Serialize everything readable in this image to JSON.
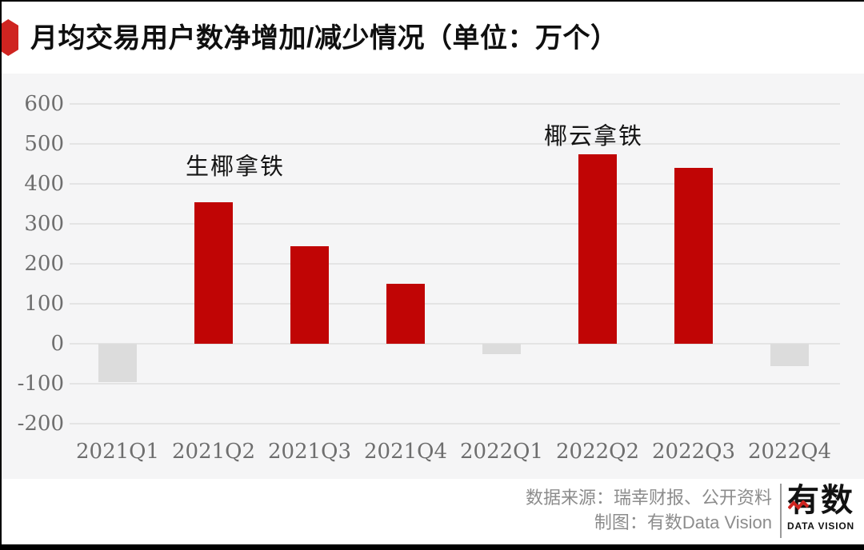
{
  "header": {
    "title": "月均交易用户数净增加/减少情况（单位：万个）"
  },
  "chart_data": {
    "type": "bar",
    "title": "月均交易用户数净增加/减少情况",
    "unit": "万个",
    "categories": [
      "2021Q1",
      "2021Q2",
      "2021Q3",
      "2021Q4",
      "2022Q1",
      "2022Q2",
      "2022Q3",
      "2022Q4"
    ],
    "values": [
      -95,
      355,
      245,
      150,
      -25,
      475,
      440,
      -55
    ],
    "yticks": [
      600,
      500,
      400,
      300,
      200,
      100,
      0,
      -100,
      -200
    ],
    "ylim": [
      -200,
      600
    ],
    "grid": true,
    "legend": "none",
    "annotations": [
      {
        "text": "生椰拿铁",
        "x": 292,
        "y": 183
      },
      {
        "text": "椰云拿铁",
        "x": 740,
        "y": 145
      }
    ]
  },
  "footer": {
    "source_line": "数据来源：瑞幸财报、公开资料",
    "credit_line": "制图：有数Data Vision",
    "logo_text": "有数",
    "logo_subtext": "DATA VISION"
  },
  "colors": {
    "bar_positive": "#c00505",
    "bar_negative": "#dcdcdc",
    "accent_red": "#cf2420",
    "grid": "#e4e4e4",
    "axis_text": "#6e6e6e",
    "footer_text": "#8c8c8c",
    "background": "#f5f5f6"
  }
}
